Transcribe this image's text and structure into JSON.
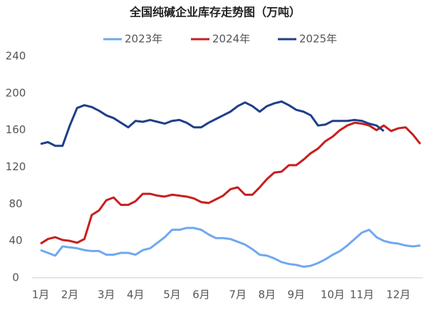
{
  "chart_data": {
    "type": "line",
    "title": "全国纯碱企业库存走势图（万吨）",
    "categories": [
      "1月",
      null,
      null,
      null,
      "2月",
      null,
      null,
      null,
      null,
      "3月",
      null,
      null,
      null,
      "4月",
      null,
      null,
      null,
      null,
      "5月",
      null,
      null,
      null,
      "6月",
      null,
      null,
      null,
      null,
      "7月",
      null,
      null,
      null,
      "8月",
      null,
      null,
      null,
      "9月",
      null,
      null,
      null,
      null,
      "10月",
      null,
      null,
      null,
      "11月",
      null,
      null,
      null,
      null,
      "12月",
      null,
      null,
      null
    ],
    "series": [
      {
        "name": "2023年",
        "color": "#6fa8f0",
        "values": [
          30,
          27,
          24,
          34,
          33,
          32,
          30,
          29,
          29,
          25,
          25,
          27,
          27,
          25,
          30,
          32,
          38,
          44,
          52,
          52,
          54,
          54,
          52,
          47,
          43,
          43,
          42,
          39,
          36,
          31,
          25,
          24,
          21,
          17,
          15,
          14,
          12,
          13,
          16,
          20,
          25,
          29,
          35,
          42,
          49,
          52,
          44,
          40,
          38,
          37,
          35,
          34,
          35
        ]
      },
      {
        "name": "2024年",
        "color": "#c81e1e",
        "values": [
          37,
          42,
          44,
          41,
          40,
          38,
          42,
          68,
          73,
          84,
          87,
          79,
          79,
          83,
          91,
          91,
          89,
          88,
          90,
          89,
          88,
          86,
          82,
          81,
          85,
          89,
          96,
          98,
          90,
          90,
          98,
          107,
          114,
          115,
          122,
          122,
          128,
          135,
          140,
          148,
          153,
          160,
          165,
          168,
          167,
          165,
          160,
          165,
          159,
          162,
          163,
          155,
          145
        ]
      },
      {
        "name": "2025年",
        "color": "#1f3f8a",
        "values": [
          145,
          147,
          143,
          143,
          165,
          184,
          187,
          185,
          181,
          176,
          173,
          168,
          163,
          170,
          169,
          171,
          169,
          167,
          170,
          171,
          168,
          163,
          163,
          168,
          172,
          176,
          180,
          186,
          190,
          186,
          180,
          186,
          189,
          191,
          187,
          182,
          180,
          176,
          165,
          166,
          170,
          170,
          170,
          171,
          170,
          167,
          165,
          159,
          null,
          null,
          null,
          null,
          null
        ]
      }
    ],
    "ylim": [
      0,
      240
    ],
    "yticks": [
      0,
      40,
      80,
      120,
      160,
      200,
      240
    ],
    "grid": false
  }
}
